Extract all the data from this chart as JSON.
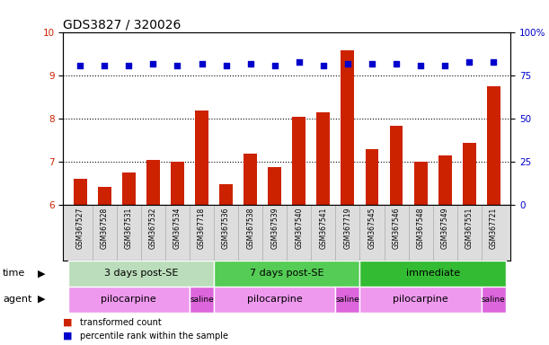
{
  "title": "GDS3827 / 320026",
  "samples": [
    "GSM367527",
    "GSM367528",
    "GSM367531",
    "GSM367532",
    "GSM367534",
    "GSM367718",
    "GSM367536",
    "GSM367538",
    "GSM367539",
    "GSM367540",
    "GSM367541",
    "GSM367719",
    "GSM367545",
    "GSM367546",
    "GSM367548",
    "GSM367549",
    "GSM367551",
    "GSM367721"
  ],
  "bar_values": [
    6.62,
    6.42,
    6.75,
    7.05,
    7.0,
    8.2,
    6.48,
    7.2,
    6.88,
    8.05,
    8.15,
    9.6,
    7.3,
    7.85,
    7.0,
    7.15,
    7.45,
    8.75
  ],
  "dot_values_right": [
    81,
    81,
    81,
    82,
    81,
    82,
    81,
    82,
    81,
    83,
    81,
    82,
    82,
    82,
    81,
    81,
    83,
    83
  ],
  "ylim_left": [
    6,
    10
  ],
  "ylim_right": [
    0,
    100
  ],
  "yticks_left": [
    6,
    7,
    8,
    9,
    10
  ],
  "yticks_right": [
    0,
    25,
    50,
    75,
    100
  ],
  "bar_color": "#cc2200",
  "dot_color": "#0000cc",
  "background_color": "#ffffff",
  "grid_color": "#000000",
  "time_groups": [
    {
      "label": "3 days post-SE",
      "start": 0,
      "end": 5,
      "color": "#bbddbb"
    },
    {
      "label": "7 days post-SE",
      "start": 6,
      "end": 11,
      "color": "#55cc55"
    },
    {
      "label": "immediate",
      "start": 12,
      "end": 17,
      "color": "#33bb33"
    }
  ],
  "agent_groups": [
    {
      "label": "pilocarpine",
      "start": 0,
      "end": 4,
      "color": "#ee99ee"
    },
    {
      "label": "saline",
      "start": 5,
      "end": 5,
      "color": "#dd66dd"
    },
    {
      "label": "pilocarpine",
      "start": 6,
      "end": 10,
      "color": "#ee99ee"
    },
    {
      "label": "saline",
      "start": 11,
      "end": 11,
      "color": "#dd66dd"
    },
    {
      "label": "pilocarpine",
      "start": 12,
      "end": 16,
      "color": "#ee99ee"
    },
    {
      "label": "saline",
      "start": 17,
      "end": 17,
      "color": "#dd66dd"
    }
  ],
  "legend_items": [
    {
      "label": "transformed count",
      "color": "#cc2200"
    },
    {
      "label": "percentile rank within the sample",
      "color": "#0000cc"
    }
  ],
  "tick_fontsize": 7.5,
  "sample_fontsize": 5.5,
  "title_fontsize": 10,
  "row_label_fontsize": 8,
  "group_label_fontsize": 8
}
